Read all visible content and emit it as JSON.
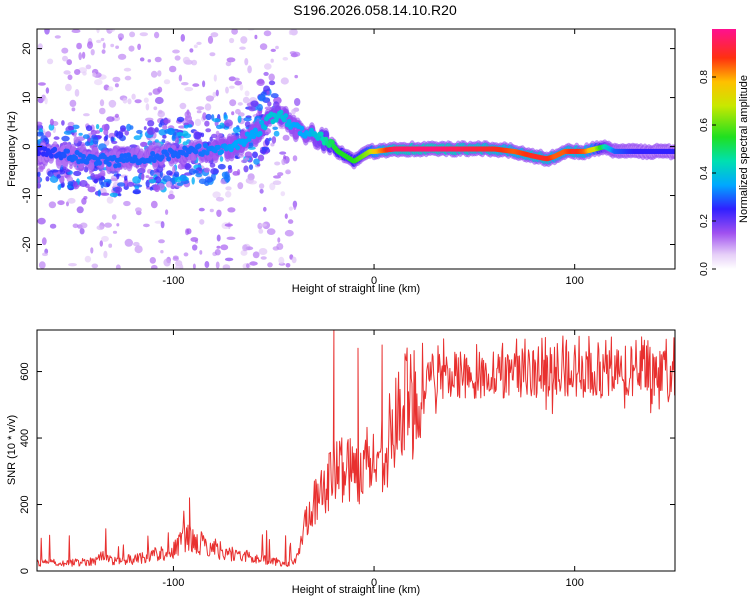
{
  "page": {
    "title": "S196.2026.058.14.10.R20"
  },
  "chart_data": [
    {
      "type": "heatmap",
      "title": "",
      "xlabel": "Height of straight line (km)",
      "ylabel": "Frequency (Hz)",
      "xlim": [
        -168,
        150
      ],
      "ylim": [
        -25,
        24
      ],
      "x_ticks": [
        -100,
        0,
        100
      ],
      "y_ticks": [
        -20,
        -10,
        0,
        10,
        20
      ],
      "colorbar": {
        "label": "Normalized spectral amplitude",
        "range": [
          0,
          1
        ],
        "ticks": [
          0.0,
          0.2,
          0.4,
          0.6,
          0.8
        ]
      },
      "ridge": {
        "x": [
          -168,
          -150,
          -130,
          -110,
          -90,
          -70,
          -58,
          -52,
          -46,
          -40,
          -34,
          -28,
          -22,
          -18,
          -14,
          -10,
          -6,
          -2,
          0,
          10,
          30,
          60,
          70,
          80,
          86,
          90,
          95,
          100,
          105,
          110,
          115,
          120,
          130,
          150
        ],
        "freq": [
          -1,
          -2,
          -3,
          -2,
          -1,
          0,
          3,
          6,
          6,
          4,
          3,
          2,
          1,
          -1,
          -2,
          -3,
          -2,
          -1,
          -1,
          -0.5,
          -0.5,
          -0.5,
          -1,
          -2,
          -2.5,
          -2,
          -1,
          -1,
          -1,
          -0.5,
          0,
          -1,
          -1,
          -1
        ],
        "amplitude": [
          0.25,
          0.3,
          0.3,
          0.3,
          0.3,
          0.35,
          0.35,
          0.4,
          0.4,
          0.35,
          0.35,
          0.4,
          0.5,
          0.55,
          0.55,
          0.55,
          0.6,
          0.65,
          0.75,
          0.95,
          0.98,
          0.9,
          0.85,
          0.9,
          0.9,
          0.85,
          0.85,
          0.9,
          0.85,
          0.7,
          0.45,
          0.3,
          0.25,
          0.25
        ]
      }
    },
    {
      "type": "line",
      "title": "",
      "xlabel": "Height of straight line (km)",
      "ylabel": "SNR (10 * v/v)",
      "xlim": [
        -168,
        150
      ],
      "ylim": [
        0,
        725
      ],
      "x_ticks": [
        -100,
        0,
        100
      ],
      "y_ticks": [
        0,
        200,
        400,
        600
      ],
      "series": [
        {
          "name": "SNR",
          "color": "#e8302f",
          "x": [
            -168,
            -150,
            -140,
            -135,
            -130,
            -120,
            -110,
            -100,
            -95,
            -90,
            -85,
            -80,
            -75,
            -70,
            -60,
            -50,
            -45,
            -40,
            -37,
            -35,
            -32,
            -30,
            -28,
            -26,
            -24,
            -22,
            -20,
            -18,
            -15,
            -12,
            -10,
            -8,
            -6,
            -4,
            -2,
            0,
            4,
            8,
            12,
            16,
            20,
            25,
            30,
            40,
            50,
            60,
            80,
            100,
            120,
            140,
            150
          ],
          "values": [
            25,
            25,
            30,
            45,
            30,
            35,
            50,
            60,
            100,
            90,
            80,
            70,
            60,
            50,
            40,
            30,
            20,
            25,
            60,
            140,
            180,
            220,
            200,
            230,
            260,
            280,
            300,
            300,
            320,
            310,
            290,
            300,
            320,
            330,
            340,
            320,
            360,
            400,
            460,
            500,
            520,
            560,
            580,
            590,
            590,
            590,
            590,
            590,
            600,
            590,
            590
          ],
          "annotations": [
            {
              "x": -92,
              "value": 220
            },
            {
              "x": -20,
              "value": 725
            },
            {
              "x": -8,
              "value": 670
            },
            {
              "x": 4,
              "value": 680
            }
          ]
        }
      ]
    }
  ]
}
